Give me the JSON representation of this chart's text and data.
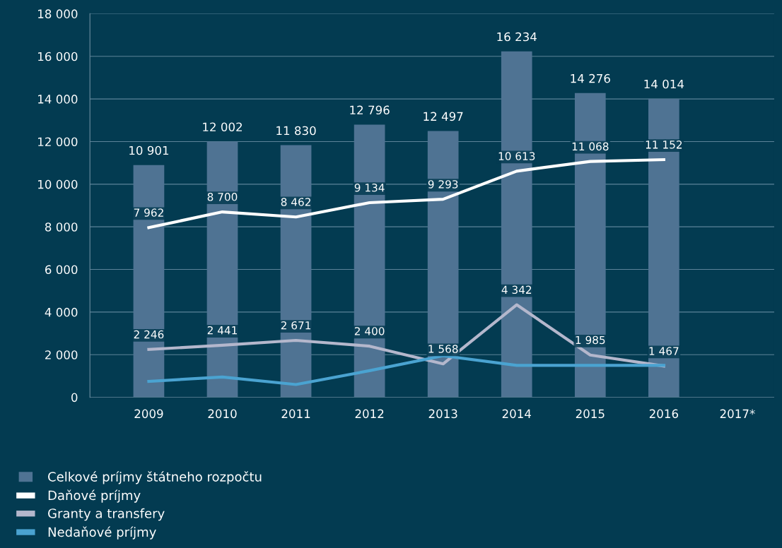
{
  "chart_data": {
    "type": "bar",
    "categories": [
      "2009",
      "2010",
      "2011",
      "2012",
      "2013",
      "2014",
      "2015",
      "2016",
      "2017*"
    ],
    "series": [
      {
        "name": "Celkové príjmy štátneho rozpočtu",
        "color": "#4f7393",
        "values": [
          10901,
          12002,
          11830,
          12796,
          12497,
          16234,
          14276,
          14014,
          null
        ],
        "value_labels": [
          "10 901",
          "12 002",
          "11 830",
          "12 796",
          "12 497",
          "16 234",
          "14 276",
          "14 014",
          null
        ]
      },
      {
        "name": "Daňové príjmy",
        "type": "line",
        "color": "#ffffff",
        "values": [
          7962,
          8700,
          8462,
          9134,
          9293,
          10613,
          11068,
          11152,
          null
        ],
        "value_labels": [
          "7 962",
          "8 700",
          "8 462",
          "9 134",
          "9 293",
          "10 613",
          "11 068",
          "11 152",
          null
        ]
      },
      {
        "name": "Granty a transfery",
        "type": "line",
        "color": "#b4b7cc",
        "values": [
          2246,
          2441,
          2671,
          2400,
          1568,
          4342,
          1985,
          1467,
          null
        ],
        "value_labels": [
          "2 246",
          "2 441",
          "2 671",
          "2 400",
          "1 568",
          "4 342",
          "1 985",
          "1 467",
          null
        ]
      },
      {
        "name": "Nedaňové príjmy",
        "type": "line",
        "color": "#4aa3d1",
        "values": [
          750,
          950,
          600,
          1250,
          1950,
          1500,
          1500,
          1500,
          null
        ]
      }
    ],
    "ylim": [
      0,
      18000
    ],
    "yticks": [
      0,
      {
        "value": 2000,
        "label": "2 000"
      },
      {
        "value": 4000,
        "label": "4 000"
      },
      {
        "value": 6000,
        "label": "6 000"
      },
      {
        "value": 8000,
        "label": "8 000"
      },
      {
        "value": 10000,
        "label": "10 000"
      },
      {
        "value": 12000,
        "label": "12 000"
      },
      {
        "value": 14000,
        "label": "14 000"
      },
      {
        "value": 16000,
        "label": "16 000"
      },
      {
        "value": 18000,
        "label": "18 000"
      }
    ],
    "grid": "y",
    "legend": "bottom left"
  }
}
